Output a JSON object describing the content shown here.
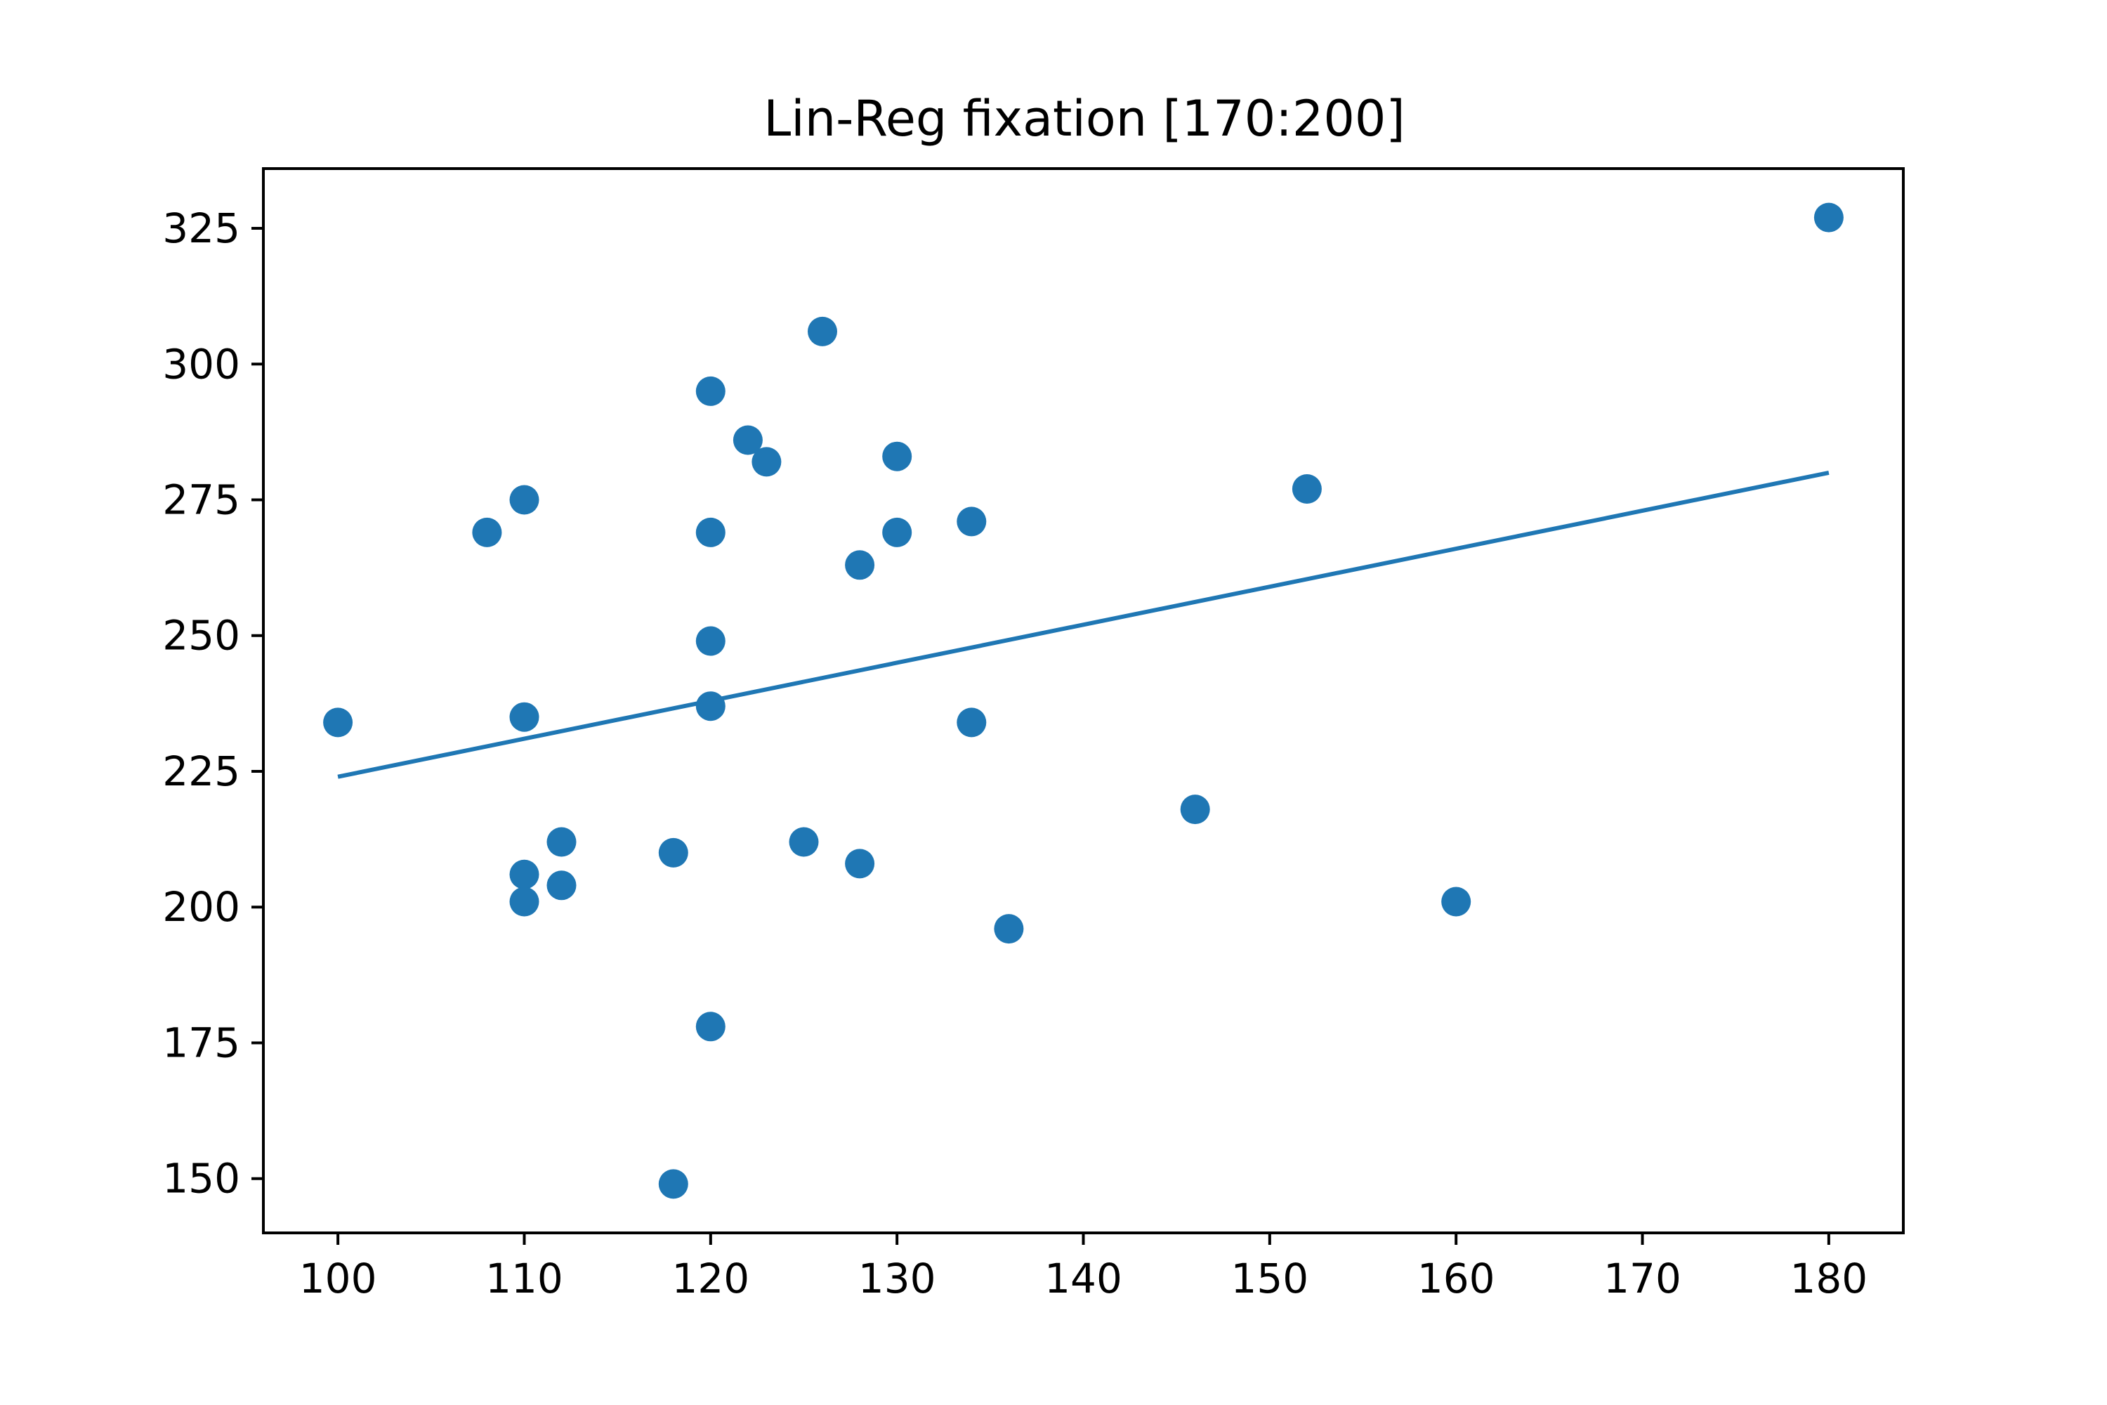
{
  "chart_data": {
    "type": "scatter",
    "title": "Lin-Reg fixation [170:200]",
    "xlabel": "",
    "ylabel": "",
    "xlim": [
      96,
      184
    ],
    "ylim": [
      140,
      336
    ],
    "grid": false,
    "x_ticks": [
      100,
      110,
      120,
      130,
      140,
      150,
      160,
      170,
      180
    ],
    "y_ticks": [
      150,
      175,
      200,
      225,
      250,
      275,
      300,
      325
    ],
    "series": [
      {
        "type": "scatter",
        "points": [
          {
            "x": 100,
            "y": 234
          },
          {
            "x": 108,
            "y": 269
          },
          {
            "x": 110,
            "y": 275
          },
          {
            "x": 110,
            "y": 235
          },
          {
            "x": 110,
            "y": 206
          },
          {
            "x": 110,
            "y": 201
          },
          {
            "x": 112,
            "y": 212
          },
          {
            "x": 112,
            "y": 204
          },
          {
            "x": 118,
            "y": 210
          },
          {
            "x": 118,
            "y": 149
          },
          {
            "x": 120,
            "y": 295
          },
          {
            "x": 120,
            "y": 269
          },
          {
            "x": 120,
            "y": 249
          },
          {
            "x": 120,
            "y": 237
          },
          {
            "x": 120,
            "y": 178
          },
          {
            "x": 122,
            "y": 286
          },
          {
            "x": 123,
            "y": 282
          },
          {
            "x": 125,
            "y": 212
          },
          {
            "x": 126,
            "y": 306
          },
          {
            "x": 128,
            "y": 263
          },
          {
            "x": 128,
            "y": 208
          },
          {
            "x": 130,
            "y": 283
          },
          {
            "x": 130,
            "y": 269
          },
          {
            "x": 134,
            "y": 271
          },
          {
            "x": 134,
            "y": 234
          },
          {
            "x": 136,
            "y": 196
          },
          {
            "x": 146,
            "y": 218
          },
          {
            "x": 152,
            "y": 277
          },
          {
            "x": 160,
            "y": 201
          },
          {
            "x": 180,
            "y": 327
          }
        ]
      },
      {
        "type": "line",
        "points": [
          {
            "x": 100,
            "y": 224
          },
          {
            "x": 180,
            "y": 280
          }
        ]
      }
    ],
    "colors": {
      "marker": "#1f77b4",
      "line": "#1f77b4",
      "axes": "#000000"
    }
  }
}
